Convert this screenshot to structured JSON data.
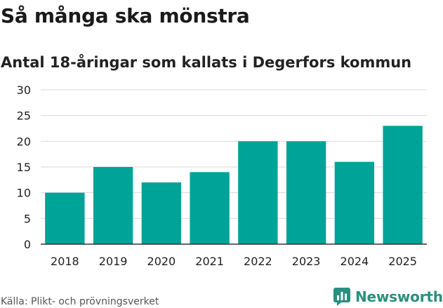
{
  "title": "Så många ska mönstra",
  "subtitle": "Antal 18-åringar som kallats i Degerfors kommun",
  "source": "Källa: Plikt- och prövningsverket",
  "brand": {
    "name": "Newsworthy",
    "logo_icon": "newsworthy-logo-icon"
  },
  "colors": {
    "bar": "#00a398",
    "grid": "#d9d9d9",
    "axis": "#333333",
    "brand": "#2a8f7e"
  },
  "chart_data": {
    "type": "bar",
    "categories": [
      "2018",
      "2019",
      "2020",
      "2021",
      "2022",
      "2023",
      "2024",
      "2025"
    ],
    "values": [
      10,
      15,
      12,
      14,
      20,
      20,
      16,
      23
    ],
    "title": "Så många ska mönstra",
    "subtitle": "Antal 18-åringar som kallats i Degerfors kommun",
    "xlabel": "",
    "ylabel": "",
    "ylim": [
      0,
      30
    ],
    "yticks": [
      0,
      5,
      10,
      15,
      20,
      25,
      30
    ],
    "grid": true,
    "legend": "none"
  }
}
